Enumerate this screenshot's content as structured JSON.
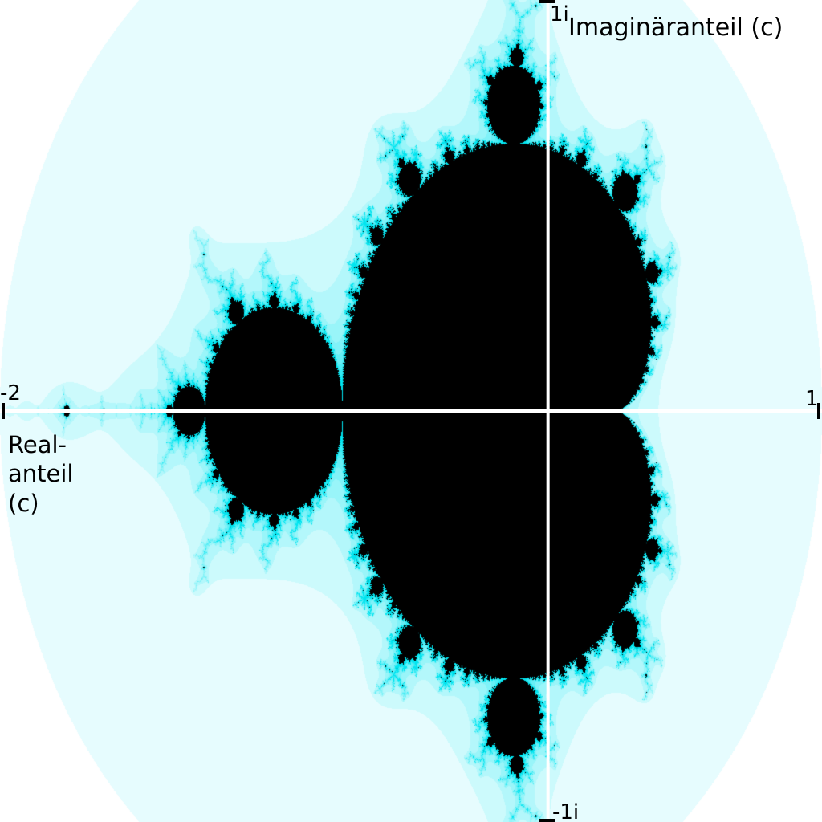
{
  "diagram": {
    "real_axis": {
      "label_lines": [
        "Real-",
        "anteil",
        "(c)"
      ],
      "min_tick_label": "-2",
      "max_tick_label": "1",
      "range": [
        -2,
        1
      ]
    },
    "imaginary_axis": {
      "label": "Imaginäranteil (c)",
      "max_tick_label": "1i",
      "min_tick_label": "-1i",
      "range": [
        -1,
        1
      ]
    },
    "colors": {
      "set_interior": "#000000",
      "escape_fast": "#ffffff",
      "escape_slow": "#00e5f0",
      "axis_line": "#ffffff",
      "axis_line_outside": "#000000",
      "text": "#000000"
    },
    "max_iterations": 120
  }
}
